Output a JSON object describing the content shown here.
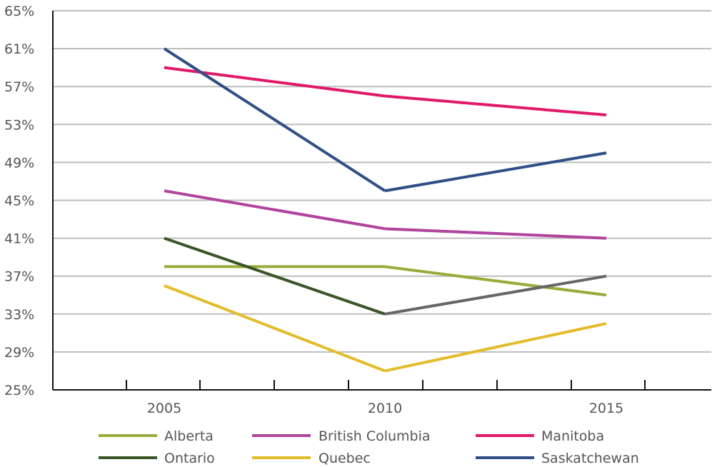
{
  "chart_data": {
    "type": "line",
    "title": "",
    "xlabel": "",
    "ylabel": "",
    "categories": [
      "2005",
      "2010",
      "2015"
    ],
    "ylim": [
      25,
      65
    ],
    "yticks": [
      25,
      29,
      33,
      37,
      41,
      45,
      49,
      53,
      57,
      61,
      65
    ],
    "ytick_labels": [
      "25%",
      "29%",
      "33%",
      "37%",
      "41%",
      "45%",
      "49%",
      "53%",
      "57%",
      "61%",
      "65%"
    ],
    "grid": "horizontal",
    "legend_position": "bottom",
    "series": [
      {
        "name": "Alberta",
        "color": "#9aab3c",
        "values": [
          38,
          38,
          35
        ]
      },
      {
        "name": "British Columbia",
        "color": "#b0449e",
        "values": [
          46,
          42,
          41
        ]
      },
      {
        "name": "Manitoba",
        "color": "#e0196a",
        "values": [
          59,
          56,
          54
        ]
      },
      {
        "name": "Ontario",
        "color": "#3b5526",
        "values": [
          41,
          33,
          37
        ],
        "segment_colors": [
          "#3b5526",
          "#666666"
        ]
      },
      {
        "name": "Quebec",
        "color": "#e3bc2b",
        "values": [
          36,
          27,
          32
        ]
      },
      {
        "name": "Saskatchewan",
        "color": "#2f4f86",
        "values": [
          61,
          46,
          50
        ]
      }
    ]
  }
}
